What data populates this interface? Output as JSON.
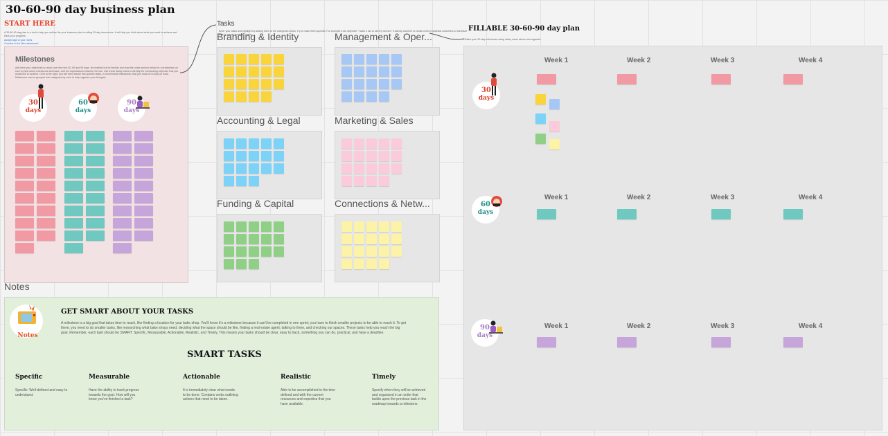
{
  "board": {
    "title": "30-60-90 day business plan",
    "start_here": "START HERE",
    "intro": "A 30-60-90 day plan is a tool to help you outline the your business plan in rolling 30-day increments. It will help you think about what you need to achieve and track your progress.",
    "links": [
      "Assign tags to your notes",
      "Connect to the Miro dashboard"
    ]
  },
  "milestones": {
    "title": "Milestones",
    "description": "Add here your objectives to reach over the next 30, 60 and 90 days. Be realistic but be flexible and read the notes section below for a breakdown on how to think about milestones and tasks, and the expectations between the two. Use these sticky notes to identify the overarching objective that you would like to achieve. Over to the right, you will then deeper into specific tasks, or incremental milestones, that you must do to stay on track. Milestones can be grouped into categories by color to help organize your thoughts.",
    "days": [
      {
        "num": "30",
        "label": "days",
        "color": "#d9402a"
      },
      {
        "num": "60",
        "label": "days",
        "color": "#1d8f86"
      },
      {
        "num": "90",
        "label": "days",
        "color": "#a77fc0"
      }
    ]
  },
  "tasks": {
    "label": "Tasks",
    "description": "Enter your tasks and highlight by adding them to the categories below. Try to make them specific. For example a tax objective \"I want 1 tax to sell my service\" if activity could be to create a list of potential customers or schedule time to create business cards.",
    "categories": [
      {
        "name": "Branding & Identity",
        "color": "yellow"
      },
      {
        "name": "Management & Oper...",
        "color": "blue"
      },
      {
        "name": "Accounting & Legal",
        "color": "cyan"
      },
      {
        "name": "Marketing & Sales",
        "color": "lpink"
      },
      {
        "name": "Funding & Capital",
        "color": "green"
      },
      {
        "name": "Connections & Netw...",
        "color": "lyellow"
      }
    ]
  },
  "fillable": {
    "title": "FILLABLE 30-60-90 day plan",
    "description": "Outline your 30-day milestones using sticky notes above and organize.",
    "periods": [
      {
        "num": "30",
        "label": "days",
        "color": "#d9402a",
        "weeks": [
          "Week 1",
          "Week 2",
          "Week 3",
          "Week 4"
        ]
      },
      {
        "num": "60",
        "label": "days",
        "color": "#1d8f86",
        "weeks": [
          "Week 1",
          "Week 2",
          "Week 3",
          "Week 4"
        ]
      },
      {
        "num": "90",
        "label": "days",
        "color": "#a77fc0",
        "weeks": [
          "Week 1",
          "Week 2",
          "Week 3",
          "Week 4"
        ]
      }
    ]
  },
  "notes": {
    "label": "Notes",
    "icon_label": "Notes",
    "heading": "GET SMART ABOUT YOUR TASKS",
    "body": "A milestone is a big goal that takes time to reach, like finding a location for your bake shop. You'll know it's a milestone because it can't be completed in one sprint; you have to finish smaller projects to be able to reach it. To get there, you need to do smaller tasks, like researching what bake shops need, deciding what the space should be like, finding a real estate agent, talking to them, and checking our spaces. These tasks help you reach the big goal. Remember, each task should be SMART: Specific, Measurable, Actionable, Realistic, and Timely. This means your tasks should be clear, easy to track, something you can do, practical, and have a deadline.",
    "smart_title": "SMART TASKS",
    "columns": [
      {
        "title": "Specific",
        "text": "Specific: Well-defined and easy to understand."
      },
      {
        "title": "Measurable",
        "text": "Have the ability to track progress towards the goal. How will you know you've finished a task?"
      },
      {
        "title": "Actionable",
        "text": "It is immediately clear what needs to be done. Contains verbs outlining actions that need to be taken."
      },
      {
        "title": "Realistic",
        "text": "Able to be accomplished in the time defined and with the current resources and expertise that you have available."
      },
      {
        "title": "Timely",
        "text": "Specify when they will be achieved and organized in an order that builds upon the previous task in the roadmap towards a milestone."
      }
    ]
  }
}
